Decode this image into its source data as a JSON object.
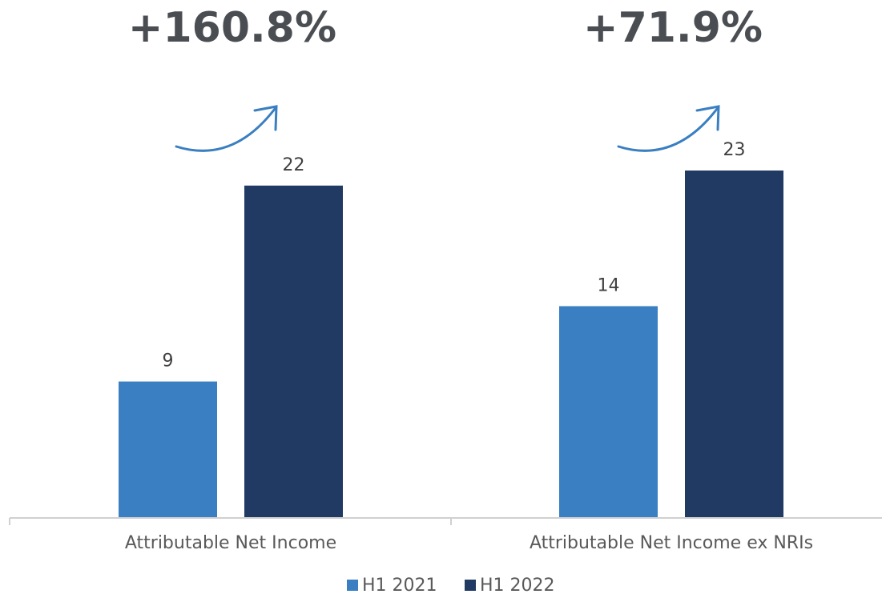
{
  "chart_data": {
    "type": "bar",
    "categories": [
      "Attributable Net Income",
      "Attributable Net Income ex NRIs"
    ],
    "series": [
      {
        "name": "H1 2021",
        "color": "#3a7fc1",
        "values": [
          9,
          14
        ]
      },
      {
        "name": "H1 2022",
        "color": "#213a63",
        "values": [
          22,
          23
        ]
      }
    ],
    "annotations": [
      "+160.8%",
      "+71.9%"
    ]
  }
}
